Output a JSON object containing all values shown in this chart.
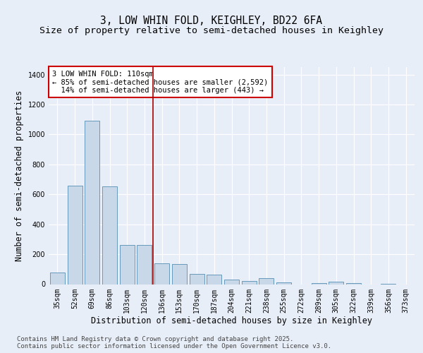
{
  "title_line1": "3, LOW WHIN FOLD, KEIGHLEY, BD22 6FA",
  "title_line2": "Size of property relative to semi-detached houses in Keighley",
  "xlabel": "Distribution of semi-detached houses by size in Keighley",
  "ylabel": "Number of semi-detached properties",
  "categories": [
    "35sqm",
    "52sqm",
    "69sqm",
    "86sqm",
    "103sqm",
    "120sqm",
    "136sqm",
    "153sqm",
    "170sqm",
    "187sqm",
    "204sqm",
    "221sqm",
    "238sqm",
    "255sqm",
    "272sqm",
    "289sqm",
    "305sqm",
    "322sqm",
    "339sqm",
    "356sqm",
    "373sqm"
  ],
  "values": [
    80,
    660,
    1090,
    655,
    260,
    260,
    140,
    135,
    70,
    65,
    30,
    20,
    40,
    10,
    0,
    8,
    18,
    5,
    0,
    4,
    0
  ],
  "bar_color": "#c8d8e8",
  "bar_edge_color": "#6699bb",
  "vline_x": 5.5,
  "vline_color": "#aa0000",
  "annotation_text": "3 LOW WHIN FOLD: 110sqm\n← 85% of semi-detached houses are smaller (2,592)\n  14% of semi-detached houses are larger (443) →",
  "annotation_box_color": "#ffffff",
  "annotation_box_edge": "#cc0000",
  "ylim": [
    0,
    1450
  ],
  "yticks": [
    0,
    200,
    400,
    600,
    800,
    1000,
    1200,
    1400
  ],
  "background_color": "#e8eef8",
  "plot_bg_color": "#e8eef8",
  "footer_text": "Contains HM Land Registry data © Crown copyright and database right 2025.\nContains public sector information licensed under the Open Government Licence v3.0.",
  "title_fontsize": 10.5,
  "subtitle_fontsize": 9.5,
  "axis_label_fontsize": 8.5,
  "tick_fontsize": 7,
  "annotation_fontsize": 7.5,
  "footer_fontsize": 6.5
}
